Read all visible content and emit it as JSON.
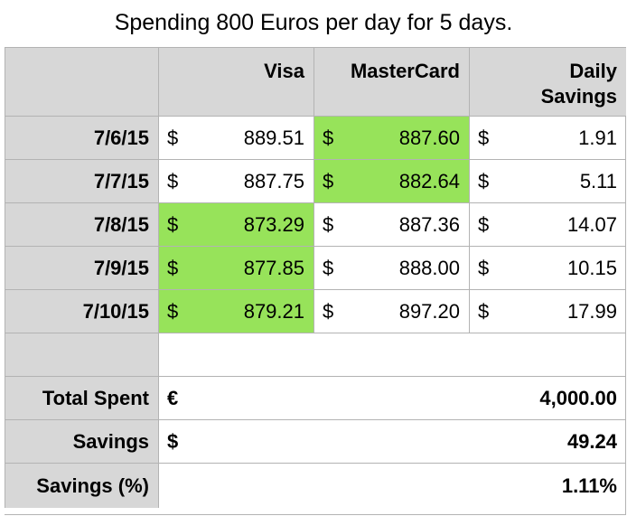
{
  "title": "Spending 800 Euros per day for 5 days.",
  "headers": {
    "visa": "Visa",
    "mastercard": "MasterCard",
    "daily_savings_line1": "Daily",
    "daily_savings_line2": "Savings"
  },
  "currency_symbol": "$",
  "rows": [
    {
      "date": "7/6/15",
      "visa": "889.51",
      "mastercard": "887.60",
      "savings": "1.91",
      "lower": "mastercard"
    },
    {
      "date": "7/7/15",
      "visa": "887.75",
      "mastercard": "882.64",
      "savings": "5.11",
      "lower": "mastercard"
    },
    {
      "date": "7/8/15",
      "visa": "873.29",
      "mastercard": "887.36",
      "savings": "14.07",
      "lower": "visa"
    },
    {
      "date": "7/9/15",
      "visa": "877.85",
      "mastercard": "888.00",
      "savings": "10.15",
      "lower": "visa"
    },
    {
      "date": "7/10/15",
      "visa": "879.21",
      "mastercard": "897.20",
      "savings": "17.99",
      "lower": "visa"
    }
  ],
  "totals": {
    "total_spent_label": "Total Spent",
    "total_spent_symbol": "€",
    "total_spent_value": "4,000.00",
    "savings_label": "Savings",
    "savings_symbol": "$",
    "savings_value": "49.24",
    "savings_pct_label": "Savings (%)",
    "savings_pct_value": "1.11%"
  },
  "colors": {
    "highlight": "#97e35a",
    "header_bg": "#d7d7d7",
    "border": "#b3b3b3"
  }
}
